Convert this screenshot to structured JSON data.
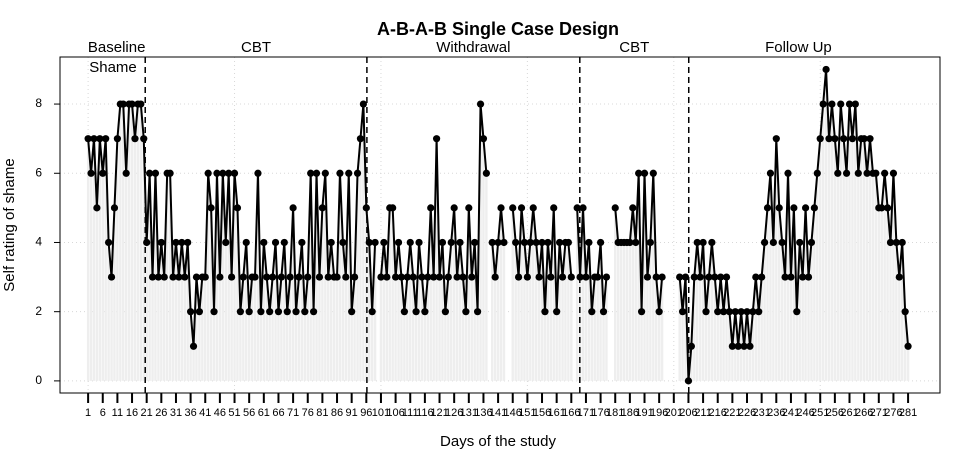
{
  "chart_data": {
    "type": "line",
    "title": "A-B-A-B Single Case Design",
    "x_label": "Days of the study",
    "y_label": "Self rating of shame",
    "phases": [
      "Baseline",
      "CBT",
      "Withdrawal",
      "CBT",
      "Follow Up"
    ],
    "phase_lines": [
      20.5,
      96.2,
      168.9,
      206.1
    ],
    "x": [
      1,
      2,
      3,
      4,
      5,
      6,
      7,
      8,
      9,
      10,
      11,
      12,
      13,
      14,
      15,
      16,
      17,
      18,
      19,
      20,
      21,
      22,
      23,
      24,
      25,
      26,
      27,
      28,
      29,
      30,
      31,
      32,
      33,
      34,
      35,
      36,
      37,
      38,
      39,
      40,
      41,
      42,
      43,
      44,
      45,
      46,
      47,
      48,
      49,
      50,
      51,
      52,
      53,
      54,
      55,
      56,
      57,
      58,
      59,
      60,
      61,
      62,
      63,
      64,
      65,
      66,
      67,
      68,
      69,
      70,
      71,
      72,
      73,
      74,
      75,
      76,
      77,
      78,
      79,
      80,
      81,
      82,
      83,
      84,
      85,
      86,
      87,
      88,
      89,
      90,
      91,
      92,
      93,
      94,
      95,
      96,
      97,
      98,
      99,
      100,
      101,
      102,
      103,
      104,
      105,
      106,
      107,
      108,
      109,
      110,
      111,
      112,
      113,
      114,
      115,
      116,
      117,
      118,
      119,
      120,
      121,
      122,
      123,
      124,
      125,
      126,
      127,
      128,
      129,
      130,
      131,
      132,
      133,
      134,
      135,
      136,
      137,
      138,
      139,
      140,
      141,
      142,
      143,
      144,
      145,
      146,
      147,
      148,
      149,
      150,
      151,
      152,
      153,
      154,
      155,
      156,
      157,
      158,
      159,
      160,
      161,
      162,
      163,
      164,
      165,
      166,
      167,
      168,
      169,
      170,
      171,
      172,
      173,
      174,
      175,
      176,
      177,
      178,
      179,
      180,
      181,
      182,
      183,
      184,
      185,
      186,
      187,
      188,
      189,
      190,
      191,
      192,
      193,
      194,
      195,
      196,
      197,
      198,
      199,
      200,
      201,
      202,
      203,
      204,
      205,
      206,
      207,
      208,
      209,
      210,
      211,
      212,
      213,
      214,
      215,
      216,
      217,
      218,
      219,
      220,
      221,
      222,
      223,
      224,
      225,
      226,
      227,
      228,
      229,
      230,
      231,
      232,
      233,
      234,
      235,
      236,
      237,
      238,
      239,
      240,
      241,
      242,
      243,
      244,
      245,
      246,
      247,
      248,
      249,
      250,
      251,
      252,
      253,
      254,
      255,
      256,
      257,
      258,
      259,
      260,
      261,
      262,
      263,
      264,
      265,
      266,
      267,
      268,
      269,
      270,
      271,
      272,
      273,
      274,
      275,
      276,
      277,
      278,
      279,
      280,
      281
    ],
    "series": [
      {
        "name": "Shame",
        "color": "#000000",
        "bar_color": "#eeeeee",
        "values": [
          7,
          6,
          7,
          5,
          7,
          6,
          7,
          4,
          3,
          5,
          7,
          8,
          8,
          6,
          8,
          8,
          7,
          8,
          8,
          7,
          4,
          6,
          3,
          6,
          3,
          4,
          3,
          6,
          6,
          3,
          4,
          3,
          4,
          3,
          4,
          2,
          1,
          3,
          2,
          3,
          3,
          6,
          5,
          2,
          6,
          3,
          6,
          4,
          6,
          3,
          6,
          5,
          2,
          3,
          4,
          2,
          3,
          3,
          6,
          2,
          4,
          3,
          2,
          3,
          4,
          2,
          3,
          4,
          2,
          3,
          5,
          2,
          3,
          4,
          2,
          3,
          6,
          2,
          6,
          3,
          5,
          6,
          3,
          4,
          3,
          3,
          6,
          4,
          3,
          6,
          2,
          3,
          6,
          7,
          8,
          5,
          4,
          2,
          4,
          null,
          3,
          4,
          3,
          5,
          5,
          3,
          4,
          3,
          2,
          3,
          4,
          3,
          2,
          4,
          3,
          2,
          3,
          5,
          3,
          7,
          3,
          4,
          2,
          3,
          4,
          5,
          3,
          4,
          3,
          2,
          5,
          3,
          4,
          2,
          8,
          7,
          6,
          null,
          4,
          3,
          4,
          5,
          4,
          null,
          null,
          5,
          4,
          3,
          5,
          4,
          3,
          4,
          5,
          4,
          3,
          4,
          2,
          4,
          3,
          5,
          2,
          4,
          3,
          4,
          4,
          3,
          null,
          5,
          3,
          5,
          3,
          4,
          2,
          3,
          3,
          4,
          2,
          3,
          null,
          null,
          5,
          4,
          4,
          4,
          4,
          4,
          5,
          4,
          6,
          2,
          6,
          3,
          4,
          6,
          3,
          2,
          3,
          null,
          null,
          null,
          null,
          null,
          3,
          2,
          3,
          0,
          1,
          3,
          4,
          3,
          4,
          2,
          3,
          4,
          3,
          2,
          3,
          2,
          3,
          2,
          1,
          2,
          1,
          2,
          1,
          2,
          1,
          2,
          3,
          2,
          3,
          4,
          5,
          6,
          4,
          7,
          5,
          4,
          3,
          6,
          3,
          5,
          2,
          4,
          3,
          5,
          3,
          4,
          5,
          6,
          7,
          8,
          9,
          7,
          8,
          7,
          6,
          8,
          7,
          6,
          8,
          7,
          8,
          6,
          7,
          7,
          6,
          7,
          6,
          6,
          5,
          5,
          6,
          5,
          4,
          6,
          4,
          3,
          4,
          2,
          1
        ]
      }
    ],
    "xlim": [
      -8.6,
      291.9
    ],
    "ylim": [
      -0.35,
      9.36
    ],
    "yticks": [
      0,
      2,
      4,
      6,
      8
    ],
    "xticks": [
      1,
      6,
      11,
      16,
      21,
      26,
      31,
      36,
      41,
      46,
      51,
      56,
      61,
      66,
      71,
      76,
      81,
      86,
      91,
      96,
      101,
      106,
      111,
      116,
      121,
      126,
      131,
      136,
      141,
      146,
      151,
      156,
      161,
      166,
      171,
      176,
      181,
      186,
      191,
      196,
      201,
      206,
      211,
      216,
      221,
      226,
      231,
      236,
      241,
      246,
      251,
      256,
      261,
      266,
      271,
      276,
      281
    ],
    "grid": true
  }
}
